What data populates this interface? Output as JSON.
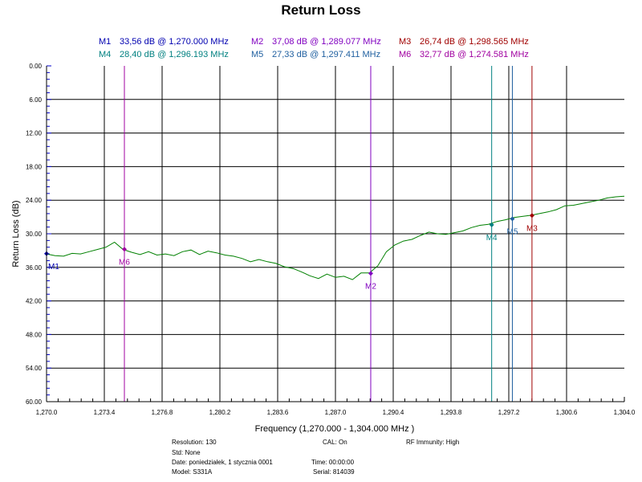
{
  "chart_data": {
    "type": "line",
    "title": "Return Loss",
    "xlabel": "Frequency (1,270.000 - 1,304.000 MHz )",
    "ylabel": "Return Loss (dB)",
    "xlim": [
      1270.0,
      1304.0
    ],
    "ylim": [
      0,
      60
    ],
    "y_inverted": true,
    "grid": true,
    "x_ticks": [
      "1,270.0",
      "1,273.4",
      "1,276.8",
      "1,280.2",
      "1,283.6",
      "1,287.0",
      "1,290.4",
      "1,293.8",
      "1,297.2",
      "1,300.6",
      "1,304.0"
    ],
    "y_ticks": [
      "0.00",
      "6.00",
      "12.00",
      "18.00",
      "24.00",
      "30.00",
      "36.00",
      "42.00",
      "48.00",
      "54.00",
      "60.00"
    ],
    "series": [
      {
        "color": "#008000",
        "x": [
          1270.0,
          1270.5,
          1271.0,
          1271.5,
          1272.0,
          1272.5,
          1273.0,
          1273.5,
          1274.0,
          1274.5,
          1275.0,
          1275.5,
          1276.0,
          1276.5,
          1277.0,
          1277.5,
          1278.0,
          1278.5,
          1279.0,
          1279.5,
          1280.0,
          1280.5,
          1281.0,
          1281.5,
          1282.0,
          1282.5,
          1283.0,
          1283.5,
          1284.0,
          1284.5,
          1285.0,
          1285.5,
          1286.0,
          1286.5,
          1287.0,
          1287.5,
          1288.0,
          1288.5,
          1289.0,
          1289.5,
          1290.0,
          1290.5,
          1291.0,
          1291.5,
          1292.0,
          1292.5,
          1293.0,
          1293.5,
          1294.0,
          1294.5,
          1295.0,
          1295.5,
          1296.0,
          1296.5,
          1297.0,
          1297.5,
          1298.0,
          1298.5,
          1299.0,
          1299.5,
          1300.0,
          1300.5,
          1301.0,
          1301.5,
          1302.0,
          1302.5,
          1303.0,
          1303.5,
          1304.0
        ],
        "y": [
          33.6,
          33.9,
          34.0,
          33.5,
          33.6,
          33.2,
          32.8,
          32.4,
          31.5,
          32.8,
          33.3,
          33.7,
          33.2,
          33.8,
          33.6,
          33.9,
          33.2,
          32.9,
          33.7,
          33.1,
          33.4,
          33.8,
          34.0,
          34.4,
          35.0,
          34.6,
          35.0,
          35.3,
          35.9,
          36.2,
          36.8,
          37.5,
          38.0,
          37.2,
          37.8,
          37.6,
          38.2,
          37.0,
          37.0,
          35.7,
          33.2,
          32.0,
          31.3,
          31.0,
          30.3,
          29.7,
          30.0,
          30.1,
          29.8,
          29.5,
          28.9,
          28.5,
          28.3,
          27.8,
          27.5,
          27.1,
          26.9,
          26.7,
          26.4,
          26.1,
          25.7,
          25.0,
          24.9,
          24.6,
          24.3,
          24.0,
          23.6,
          23.4,
          23.3
        ]
      }
    ],
    "markers": [
      {
        "id": "M1",
        "text": "33,56 dB @ 1,270.000 MHz",
        "freq": 1270.0,
        "db": 33.56,
        "color": "#0000b0"
      },
      {
        "id": "M2",
        "text": "37,08 dB @ 1,289.077 MHz",
        "freq": 1289.077,
        "db": 37.08,
        "color": "#8000c0"
      },
      {
        "id": "M3",
        "text": "26,74 dB @ 1,298.565 MHz",
        "freq": 1298.565,
        "db": 26.74,
        "color": "#a00000"
      },
      {
        "id": "M4",
        "text": "28,40 dB @ 1,296.193 MHz",
        "freq": 1296.193,
        "db": 28.4,
        "color": "#008080"
      },
      {
        "id": "M5",
        "text": "27,33 dB @ 1,297.411 MHz",
        "freq": 1297.411,
        "db": 27.33,
        "color": "#2060a0"
      },
      {
        "id": "M6",
        "text": "32,77 dB @ 1,274.581 MHz",
        "freq": 1274.581,
        "db": 32.77,
        "color": "#a000a0"
      }
    ],
    "info": {
      "resolution": "Resolution: 130",
      "std": "Std: None",
      "date": "Date: poniedziałek, 1 stycznia 0001",
      "model": "Model: S331A",
      "cal": "CAL: On",
      "time": "Time: 00:00:00",
      "serial": "Serial: 814039",
      "rf": "RF Immunity: High"
    }
  }
}
